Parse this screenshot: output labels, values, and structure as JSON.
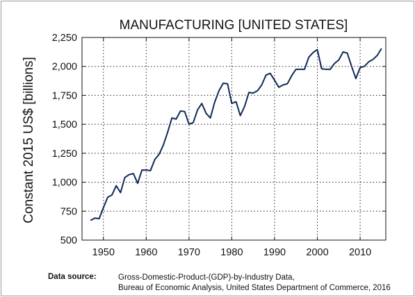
{
  "chart_data": {
    "type": "line",
    "title": "MANUFACTURING [UNITED STATES]",
    "ylabel": "Constant 2015 US$ [billions]",
    "xlabel": "",
    "xlim": [
      1945,
      2016
    ],
    "ylim": [
      500,
      2250
    ],
    "xticks": [
      1950,
      1960,
      1970,
      1980,
      1990,
      2000,
      2010
    ],
    "yticks": [
      500,
      750,
      1000,
      1250,
      1500,
      1750,
      2000,
      2250
    ],
    "ytick_labels": [
      "500",
      "750",
      "1,000",
      "1,250",
      "1,500",
      "1,750",
      "2,000",
      "2,250"
    ],
    "grid": true,
    "color": "#0d2a57",
    "series": [
      {
        "x": [
          1947,
          1948,
          1949,
          1950,
          1951,
          1952,
          1953,
          1954,
          1955,
          1956,
          1957,
          1958,
          1959,
          1960,
          1961,
          1962,
          1963,
          1964,
          1965,
          1966,
          1967,
          1968,
          1969,
          1970,
          1971,
          1972,
          1973,
          1974,
          1975,
          1976,
          1977,
          1978,
          1979,
          1980,
          1981,
          1982,
          1983,
          1984,
          1985,
          1986,
          1987,
          1988,
          1989,
          1990,
          1991,
          1992,
          1993,
          1994,
          1995,
          1996,
          1997,
          1998,
          1999,
          2000,
          2001,
          2002,
          2003,
          2004,
          2005,
          2006,
          2007,
          2008,
          2009,
          2010,
          2011,
          2012,
          2013,
          2014,
          2015
        ],
        "y": [
          670,
          690,
          685,
          780,
          870,
          890,
          970,
          910,
          1040,
          1065,
          1075,
          990,
          1105,
          1105,
          1100,
          1195,
          1240,
          1320,
          1430,
          1555,
          1545,
          1615,
          1610,
          1500,
          1515,
          1625,
          1680,
          1595,
          1555,
          1690,
          1790,
          1855,
          1850,
          1680,
          1695,
          1575,
          1655,
          1775,
          1770,
          1790,
          1840,
          1925,
          1940,
          1880,
          1820,
          1840,
          1850,
          1920,
          1975,
          1975,
          1975,
          2080,
          2120,
          2145,
          1980,
          1975,
          1975,
          2025,
          2055,
          2125,
          2115,
          2000,
          1895,
          1990,
          2000,
          2040,
          2060,
          2095,
          2155
        ]
      }
    ]
  },
  "source": {
    "label": "Data source:",
    "line1": "Gross-Domestic-Product-(GDP)-by-Industry Data,",
    "line2": "Bureau of Economic Analysis, United States Department of Commerce, 2016"
  }
}
